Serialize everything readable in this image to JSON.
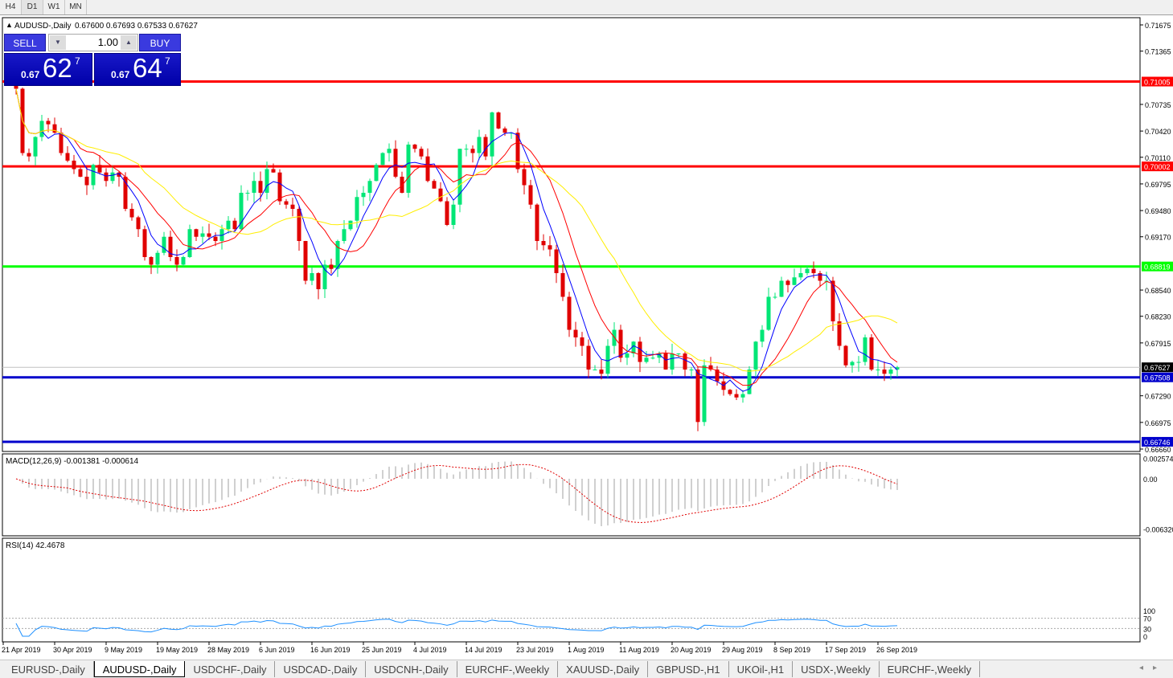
{
  "timeframes": [
    "H4",
    "D1",
    "W1",
    "MN"
  ],
  "active_timeframe": "D1",
  "header": {
    "symbol": "AUDUSD-,Daily",
    "ohlc": "0.67600 0.67693 0.67533 0.67627"
  },
  "trade_panel": {
    "sell_label": "SELL",
    "buy_label": "BUY",
    "lot": "1.00",
    "sell_prefix": "0.67",
    "sell_big": "62",
    "sell_sup": "7",
    "buy_prefix": "0.67",
    "buy_big": "64",
    "buy_sup": "7"
  },
  "colors": {
    "bull": "#00e676",
    "bear": "#e00000",
    "ma_fast": "#0000ff",
    "ma_mid": "#ff0000",
    "ma_slow": "#ffee00",
    "rsi": "#1e90ff"
  },
  "chart_data": {
    "type": "candlestick",
    "price_axis_ticks": [
      "0.71675",
      "0.71365",
      "0.70735",
      "0.70420",
      "0.70110",
      "0.69795",
      "0.69480",
      "0.69170",
      "0.68540",
      "0.68230",
      "0.67915",
      "0.67290",
      "0.66975",
      "0.66660"
    ],
    "ylim": [
      0.6666,
      0.71675
    ],
    "levels": [
      {
        "price": "0.71005",
        "color": "#ff0000"
      },
      {
        "price": "0.70002",
        "color": "#ff0000"
      },
      {
        "price": "0.68819",
        "color": "#00ff00"
      },
      {
        "price": "0.67508",
        "color": "#0000cc"
      },
      {
        "price": "0.66746",
        "color": "#0000cc"
      }
    ],
    "current_price": "0.67627",
    "date_labels": [
      "21 Apr 2019",
      "30 Apr 2019",
      "9 May 2019",
      "19 May 2019",
      "28 May 2019",
      "6 Jun 2019",
      "16 Jun 2019",
      "25 Jun 2019",
      "4 Jul 2019",
      "14 Jul 2019",
      "23 Jul 2019",
      "1 Aug 2019",
      "11 Aug 2019",
      "20 Aug 2019",
      "29 Aug 2019",
      "8 Sep 2019",
      "17 Sep 2019",
      "26 Sep 2019"
    ],
    "closes": [
      0.7092,
      0.7016,
      0.7012,
      0.7035,
      0.7054,
      0.705,
      0.704,
      0.7016,
      0.7007,
      0.6997,
      0.6988,
      0.6978,
      0.7002,
      0.6993,
      0.6983,
      0.6993,
      0.6988,
      0.695,
      0.694,
      0.6926,
      0.6893,
      0.6884,
      0.6898,
      0.6917,
      0.6893,
      0.6884,
      0.6893,
      0.6926,
      0.6917,
      0.6921,
      0.6917,
      0.6912,
      0.6926,
      0.6936,
      0.6926,
      0.6969,
      0.6969,
      0.6983,
      0.6969,
      0.6997,
      0.6993,
      0.6959,
      0.6955,
      0.695,
      0.6912,
      0.6865,
      0.6874,
      0.6855,
      0.6884,
      0.6879,
      0.6912,
      0.6926,
      0.6936,
      0.6964,
      0.6969,
      0.6983,
      0.7002,
      0.7016,
      0.7021,
      0.6988,
      0.6969,
      0.7026,
      0.7021,
      0.7012,
      0.6983,
      0.6974,
      0.6959,
      0.6931,
      0.6955,
      0.7021,
      0.7021,
      0.7016,
      0.7035,
      0.7012,
      0.7064,
      0.7045,
      0.704,
      0.704,
      0.6997,
      0.6978,
      0.6955,
      0.6912,
      0.6907,
      0.6902,
      0.6874,
      0.6846,
      0.6807,
      0.6798,
      0.6788,
      0.676,
      0.676,
      0.6755,
      0.6788,
      0.6807,
      0.6774,
      0.6779,
      0.6793,
      0.6769,
      0.6774,
      0.6774,
      0.6779,
      0.676,
      0.6779,
      0.6779,
      0.676,
      0.676,
      0.6698,
      0.6765,
      0.676,
      0.6746,
      0.6736,
      0.6731,
      0.6727,
      0.6731,
      0.676,
      0.6793,
      0.6807,
      0.6846,
      0.6846,
      0.6865,
      0.686,
      0.6869,
      0.6874,
      0.6879,
      0.6874,
      0.6865,
      0.6865,
      0.6817,
      0.6788,
      0.6765,
      0.6769,
      0.6769,
      0.6798,
      0.676,
      0.676,
      0.6755,
      0.676,
      0.67627
    ],
    "macd": {
      "label": "MACD(12,26,9) -0.001381 -0.000614",
      "ticks": [
        "0.002574",
        "0.00",
        "-0.006320"
      ]
    },
    "rsi": {
      "label": "RSI(14) 42.4678",
      "ticks": [
        "100",
        "70",
        "30",
        "0"
      ]
    }
  },
  "symbol_tabs": [
    "EURUSD-,Daily",
    "AUDUSD-,Daily",
    "USDCHF-,Daily",
    "USDCAD-,Daily",
    "USDCNH-,Daily",
    "EURCHF-,Weekly",
    "XAUUSD-,Daily",
    "GBPUSD-,H1",
    "UKOil-,H1",
    "USDX-,Weekly",
    "EURCHF-,Weekly"
  ],
  "active_symbol_tab": "AUDUSD-,Daily"
}
